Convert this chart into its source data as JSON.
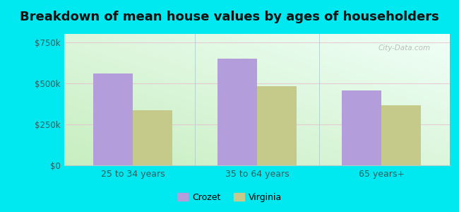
{
  "title": "Breakdown of mean house values by ages of householders",
  "categories": [
    "25 to 34 years",
    "35 to 64 years",
    "65 years+"
  ],
  "crozet_values": [
    560000,
    650000,
    455000
  ],
  "virginia_values": [
    335000,
    480000,
    365000
  ],
  "crozet_color": "#b39ddb",
  "virginia_color": "#c5c98a",
  "yticks": [
    0,
    250000,
    500000,
    750000
  ],
  "ytick_labels": [
    "$0",
    "$250k",
    "$500k",
    "$750k"
  ],
  "ylim": [
    0,
    800000
  ],
  "background_outer": "#00e8f0",
  "bar_width": 0.32,
  "title_fontsize": 13,
  "legend_labels": [
    "Crozet",
    "Virginia"
  ],
  "watermark": "City-Data.com",
  "grad_color_bottom_left": "#c8eec0",
  "grad_color_top_right": "#f5ffff"
}
